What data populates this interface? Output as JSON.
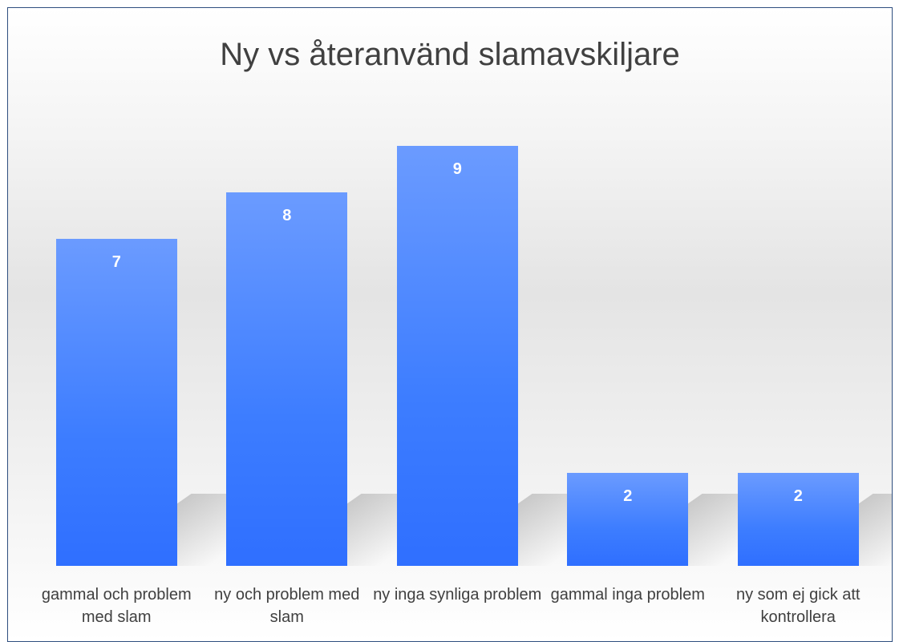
{
  "chart_data": {
    "type": "bar",
    "title": "Ny vs återanvänd slamavskiljare",
    "categories": [
      "gammal och problem med slam",
      "ny och problem med slam",
      "ny inga synliga problem",
      "gammal inga problem",
      "ny som ej gick att kontrollera"
    ],
    "values": [
      7,
      8,
      9,
      2,
      2
    ],
    "color": "#3d7dff"
  }
}
